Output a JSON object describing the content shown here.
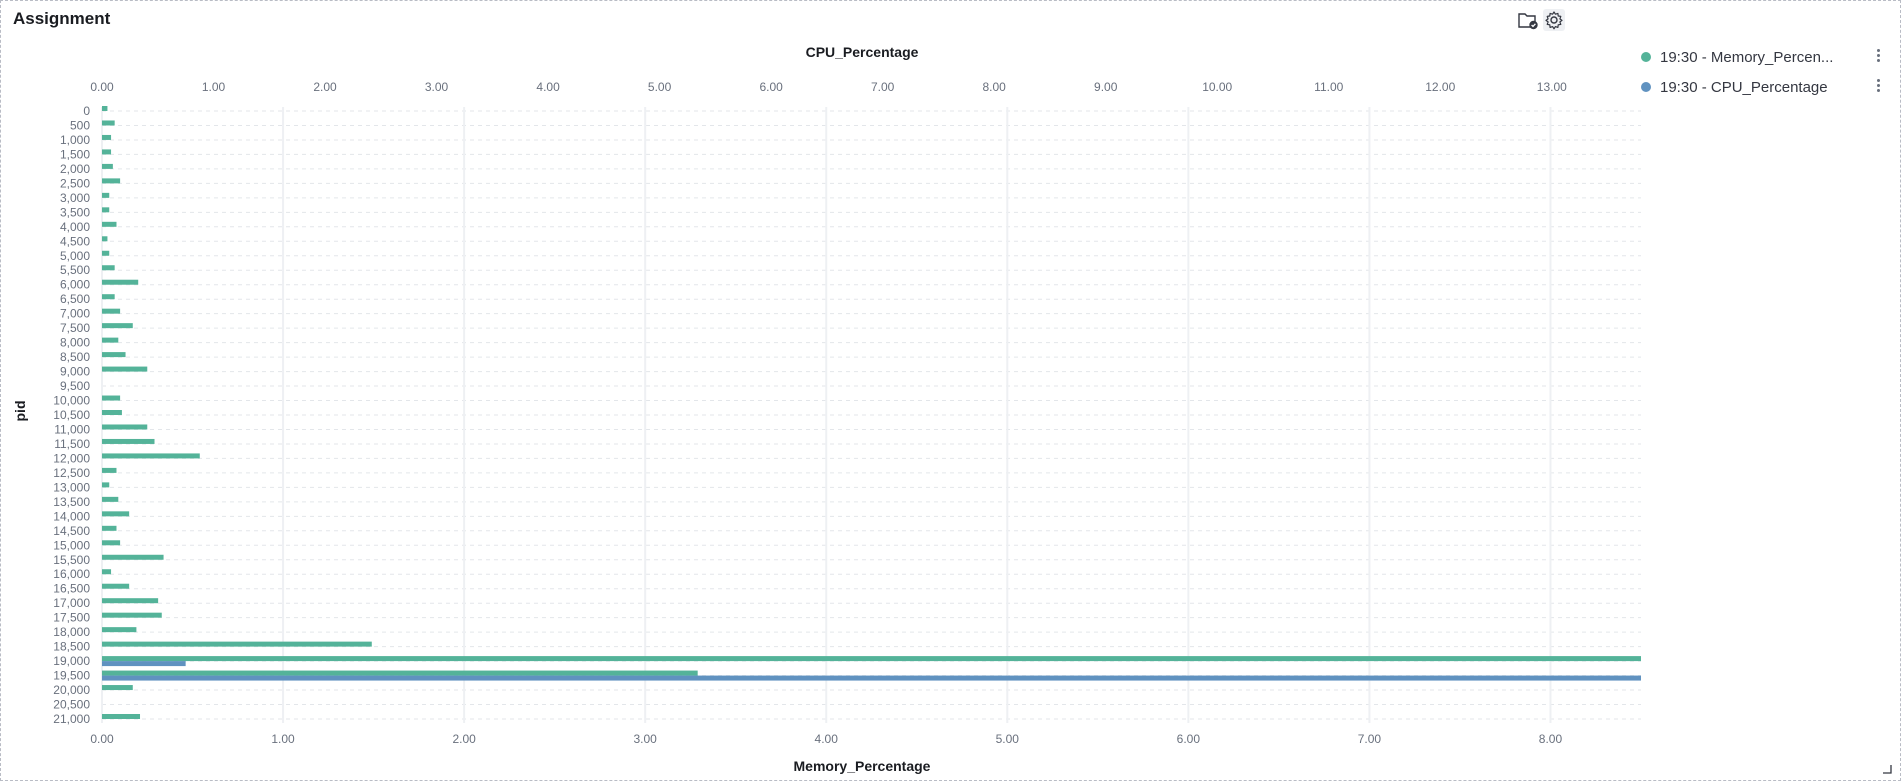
{
  "panel": {
    "title": "Assignment",
    "icons": [
      "folder-check-icon",
      "gear-icon"
    ]
  },
  "legend": [
    {
      "label": "19:30 - Memory_Percen...",
      "color": "#54b399"
    },
    {
      "label": "19:30 - CPU_Percentage",
      "color": "#6092c0"
    }
  ],
  "chart_data": {
    "type": "bar",
    "orientation": "horizontal",
    "ylabel": "pid",
    "x_top_label": "CPU_Percentage",
    "x_bottom_label": "Memory_Percentage",
    "y_categories": [
      "0",
      "500",
      "1,000",
      "1,500",
      "2,000",
      "2,500",
      "3,000",
      "3,500",
      "4,000",
      "4,500",
      "5,000",
      "5,500",
      "6,000",
      "6,500",
      "7,000",
      "7,500",
      "8,000",
      "8,500",
      "9,000",
      "9,500",
      "10,000",
      "10,500",
      "11,000",
      "11,500",
      "12,000",
      "12,500",
      "13,000",
      "13,500",
      "14,000",
      "14,500",
      "15,000",
      "15,500",
      "16,000",
      "16,500",
      "17,000",
      "17,500",
      "18,000",
      "18,500",
      "19,000",
      "19,500",
      "20,000",
      "20,500",
      "21,000"
    ],
    "x_top_ticks": [
      "0.00",
      "1.00",
      "2.00",
      "3.00",
      "4.00",
      "5.00",
      "6.00",
      "7.00",
      "8.00",
      "9.00",
      "10.00",
      "11.00",
      "12.00",
      "13.00"
    ],
    "x_top_range": [
      0,
      13.8
    ],
    "x_bottom_ticks": [
      "0.00",
      "1.00",
      "2.00",
      "3.00",
      "4.00",
      "5.00",
      "6.00",
      "7.00",
      "8.00"
    ],
    "x_bottom_range": [
      0,
      8.5
    ],
    "grid": true,
    "series": [
      {
        "name": "19:30 - Memory_Percentage",
        "color": "#54b399",
        "axis": "bottom",
        "values": [
          0.03,
          0.07,
          0.05,
          0.05,
          0.06,
          0.1,
          0.04,
          0.04,
          0.08,
          0.03,
          0.04,
          0.07,
          0.2,
          0.07,
          0.1,
          0.17,
          0.09,
          0.13,
          0.25,
          0,
          0.1,
          0.11,
          0.25,
          0.29,
          0.54,
          0.08,
          0.04,
          0.09,
          0.15,
          0.08,
          0.1,
          0.34,
          0.05,
          0.15,
          0.31,
          0.33,
          0.19,
          1.49,
          8.5,
          3.29,
          0.17,
          0,
          0.21
        ]
      },
      {
        "name": "19:30 - CPU_Percentage",
        "color": "#6092c0",
        "axis": "top",
        "values": [
          0,
          0,
          0,
          0,
          0,
          0,
          0,
          0,
          0,
          0,
          0,
          0,
          0,
          0,
          0,
          0,
          0,
          0,
          0,
          0,
          0,
          0,
          0,
          0,
          0,
          0,
          0,
          0,
          0,
          0,
          0,
          0,
          0,
          0,
          0,
          0,
          0,
          0,
          0.75,
          13.8,
          0,
          0,
          0
        ]
      }
    ]
  }
}
